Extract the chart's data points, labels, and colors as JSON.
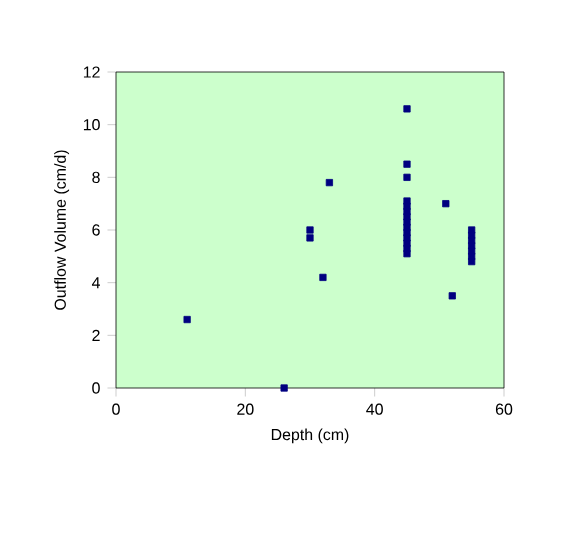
{
  "chart_data": {
    "type": "scatter",
    "xlabel": "Depth (cm)",
    "ylabel": "Outflow Volume (cm/d)",
    "x": [
      11,
      26,
      30,
      30,
      32,
      33,
      45,
      45,
      45,
      45,
      45,
      45,
      45,
      45,
      45,
      45,
      45,
      45,
      45,
      45,
      51,
      52,
      55,
      55,
      55,
      55,
      55,
      55,
      55
    ],
    "values": [
      2.6,
      0,
      6.0,
      5.7,
      4.2,
      7.8,
      10.6,
      8.5,
      8.0,
      7.1,
      6.9,
      6.7,
      6.5,
      6.3,
      6.1,
      5.9,
      5.7,
      5.5,
      5.3,
      5.1,
      7.0,
      3.5,
      6.0,
      5.8,
      5.6,
      5.4,
      5.2,
      5.0,
      4.8
    ],
    "color": "#000080",
    "marker": "square",
    "xlim": [
      0,
      60
    ],
    "ylim": [
      0,
      12
    ],
    "xticks": [
      0,
      20,
      40,
      60
    ],
    "yticks": [
      0,
      2,
      4,
      6,
      8,
      10,
      12
    ],
    "grid": false
  }
}
